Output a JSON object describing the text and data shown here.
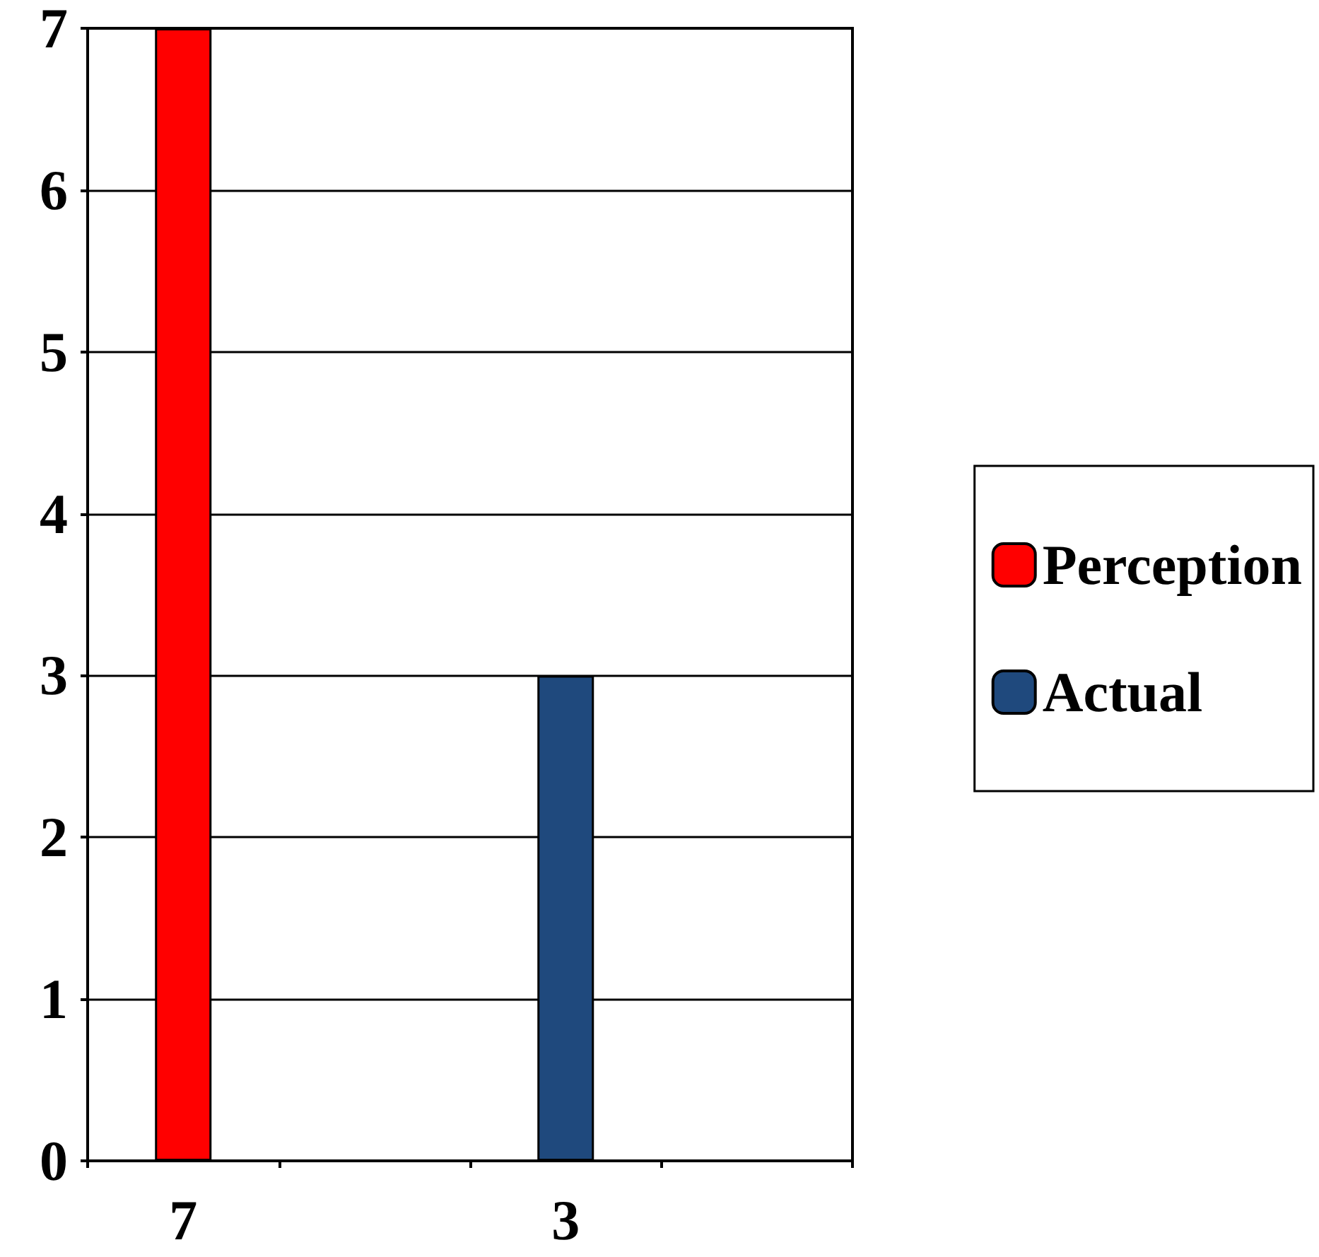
{
  "chart_data": {
    "type": "bar",
    "categories": [
      "7",
      null,
      "3",
      null
    ],
    "series": [
      {
        "name": "Perception",
        "color": "#ff0000",
        "values": [
          7,
          null,
          null,
          null
        ]
      },
      {
        "name": "Actual",
        "color": "#1f497d",
        "values": [
          null,
          null,
          3,
          null
        ]
      }
    ],
    "ylim": [
      0,
      7
    ],
    "yticks": [
      0,
      1,
      2,
      3,
      4,
      5,
      6,
      7
    ],
    "grid": "y",
    "legend": "right"
  }
}
